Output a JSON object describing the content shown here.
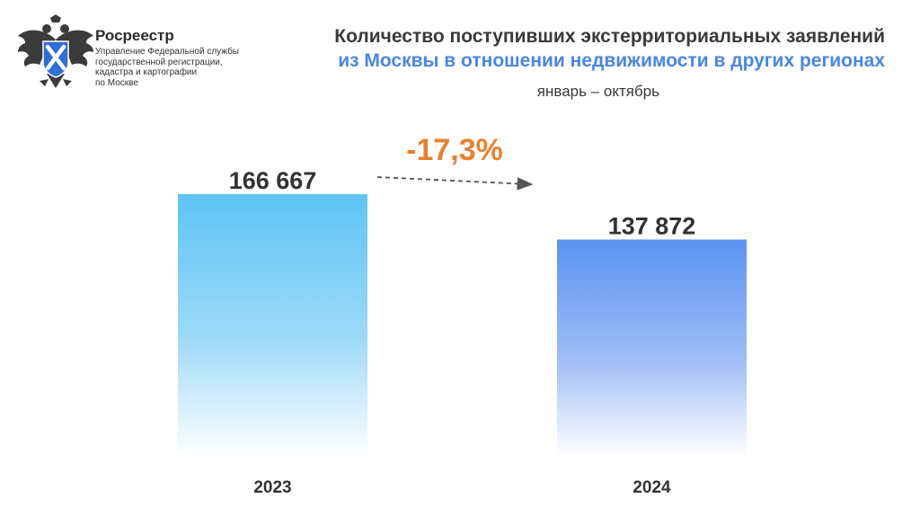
{
  "header": {
    "brand_name": "Росреестр",
    "brand_sub_lines": [
      "Управление Федеральной службы",
      "государственной регистрации,",
      "кадастра и картографии",
      "по Москве"
    ],
    "title_line1": "Количество поступивших экстерриториальных заявлений",
    "title_line2": "из Москвы в отношении недвижимости в других регионах",
    "subtitle": "январь – октябрь"
  },
  "chart_data": {
    "type": "bar",
    "title": "Количество поступивших экстерриториальных заявлений из Москвы в отношении недвижимости в других регионах",
    "subtitle": "январь – октябрь",
    "categories": [
      "2023",
      "2024"
    ],
    "values": [
      166667,
      137872
    ],
    "value_labels": [
      "166 667",
      "137 872"
    ],
    "ylim": [
      0,
      166667
    ],
    "grid": false,
    "change_annotation": "-17,3%",
    "colors": {
      "bar_2023_top": "#5ec4f5",
      "bar_2024_top": "#5b93f2",
      "bar_bottom": "#ffffff",
      "change": "#e8822e",
      "title_accent": "#4a86e8"
    }
  }
}
